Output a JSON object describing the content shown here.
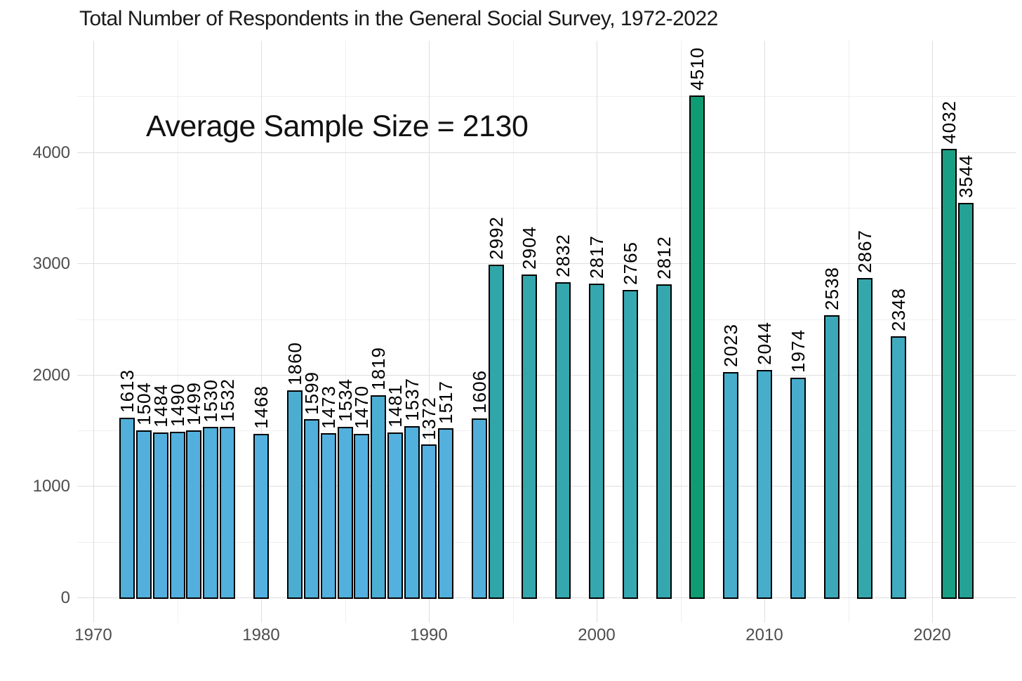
{
  "chart_data": {
    "type": "bar",
    "title": "Total Number of Respondents in the General Social Survey, 1972-2022",
    "annotation": "Average Sample Size = 2130",
    "xlabel": "",
    "ylabel": "",
    "x": [
      1972,
      1973,
      1974,
      1975,
      1976,
      1977,
      1978,
      1980,
      1982,
      1983,
      1984,
      1985,
      1986,
      1987,
      1988,
      1989,
      1990,
      1991,
      1993,
      1994,
      1996,
      1998,
      2000,
      2002,
      2004,
      2006,
      2008,
      2010,
      2012,
      2014,
      2016,
      2018,
      2021,
      2022
    ],
    "values": [
      1613,
      1504,
      1484,
      1490,
      1499,
      1530,
      1532,
      1468,
      1860,
      1599,
      1473,
      1534,
      1470,
      1819,
      1481,
      1537,
      1372,
      1517,
      1606,
      2992,
      2904,
      2832,
      2817,
      2765,
      2812,
      4510,
      2023,
      2044,
      1974,
      2538,
      2867,
      2348,
      4032,
      3544
    ],
    "bar_value_labels_rotated": true,
    "x_ticks": [
      1970,
      1980,
      1990,
      2000,
      2010,
      2020
    ],
    "x_minor_ticks": [
      1975,
      1985,
      1995,
      2005,
      2015
    ],
    "y_ticks": [
      0,
      1000,
      2000,
      3000,
      4000
    ],
    "y_minor_ticks": [
      500,
      1500,
      2500,
      3500,
      4500
    ],
    "ylim": [
      0,
      4510
    ],
    "xlim": [
      1969,
      2023
    ],
    "grid": "major and minor, light gray on white, no axis lines",
    "legend": "none",
    "color_scale": {
      "type": "continuous, value-mapped blue-to-green",
      "domain": [
        1372,
        4510
      ],
      "low": "#56B1E2",
      "high": "#0F9C73"
    },
    "colors": {
      "bar_border": "#000000",
      "grid_major": "#DEDEDE",
      "grid_minor": "#EFEFEF",
      "axis_text": "#4D4D4D",
      "title_text": "#1A1A1A",
      "bar_label_text": "#000000",
      "background": "#FFFFFF"
    }
  }
}
